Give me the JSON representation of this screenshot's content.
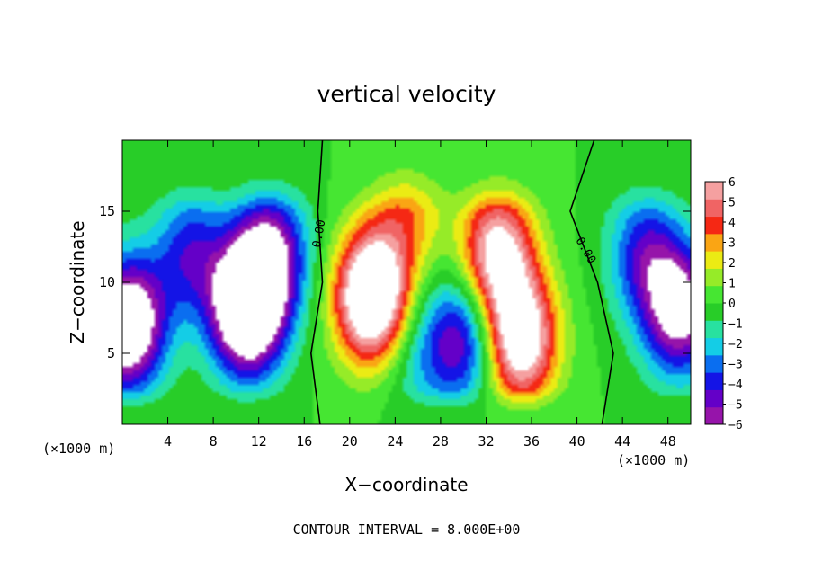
{
  "chart_data": {
    "type": "heatmap",
    "title": "vertical velocity",
    "xlabel": "X−coordinate",
    "ylabel": "Z−coordinate",
    "x_unit_label": "(×1000 m)",
    "footer": "CONTOUR INTERVAL = 8.000E+00",
    "xlim": [
      0,
      50
    ],
    "ylim": [
      0,
      20
    ],
    "xticks": [
      4,
      8,
      12,
      16,
      20,
      24,
      28,
      32,
      36,
      40,
      44,
      48
    ],
    "yticks": [
      5,
      10,
      15
    ],
    "colorbar": {
      "ticks": [
        "6",
        "5",
        "4",
        "3",
        "2",
        "1",
        "0",
        "−1",
        "−2",
        "−3",
        "−4",
        "−5",
        "−6"
      ],
      "range": [
        -6,
        6
      ]
    },
    "contour_labels": [
      "0.00",
      "0.00"
    ],
    "features": [
      {
        "x": 0.5,
        "z": 7,
        "w": -9
      },
      {
        "x": 6,
        "z": 12,
        "w": -4
      },
      {
        "x": 11,
        "z": 8,
        "w": -10
      },
      {
        "x": 13,
        "z": 12,
        "w": -6
      },
      {
        "x": 22,
        "z": 9,
        "w": 10
      },
      {
        "x": 25,
        "z": 15,
        "w": 3
      },
      {
        "x": 26,
        "z": 5,
        "w": -2
      },
      {
        "x": 30,
        "z": 6,
        "w": -5
      },
      {
        "x": 33,
        "z": 12,
        "w": 7
      },
      {
        "x": 35,
        "z": 6,
        "w": 8
      },
      {
        "x": 49,
        "z": 8,
        "w": -7
      },
      {
        "x": 46,
        "z": 12,
        "w": -4
      }
    ]
  }
}
